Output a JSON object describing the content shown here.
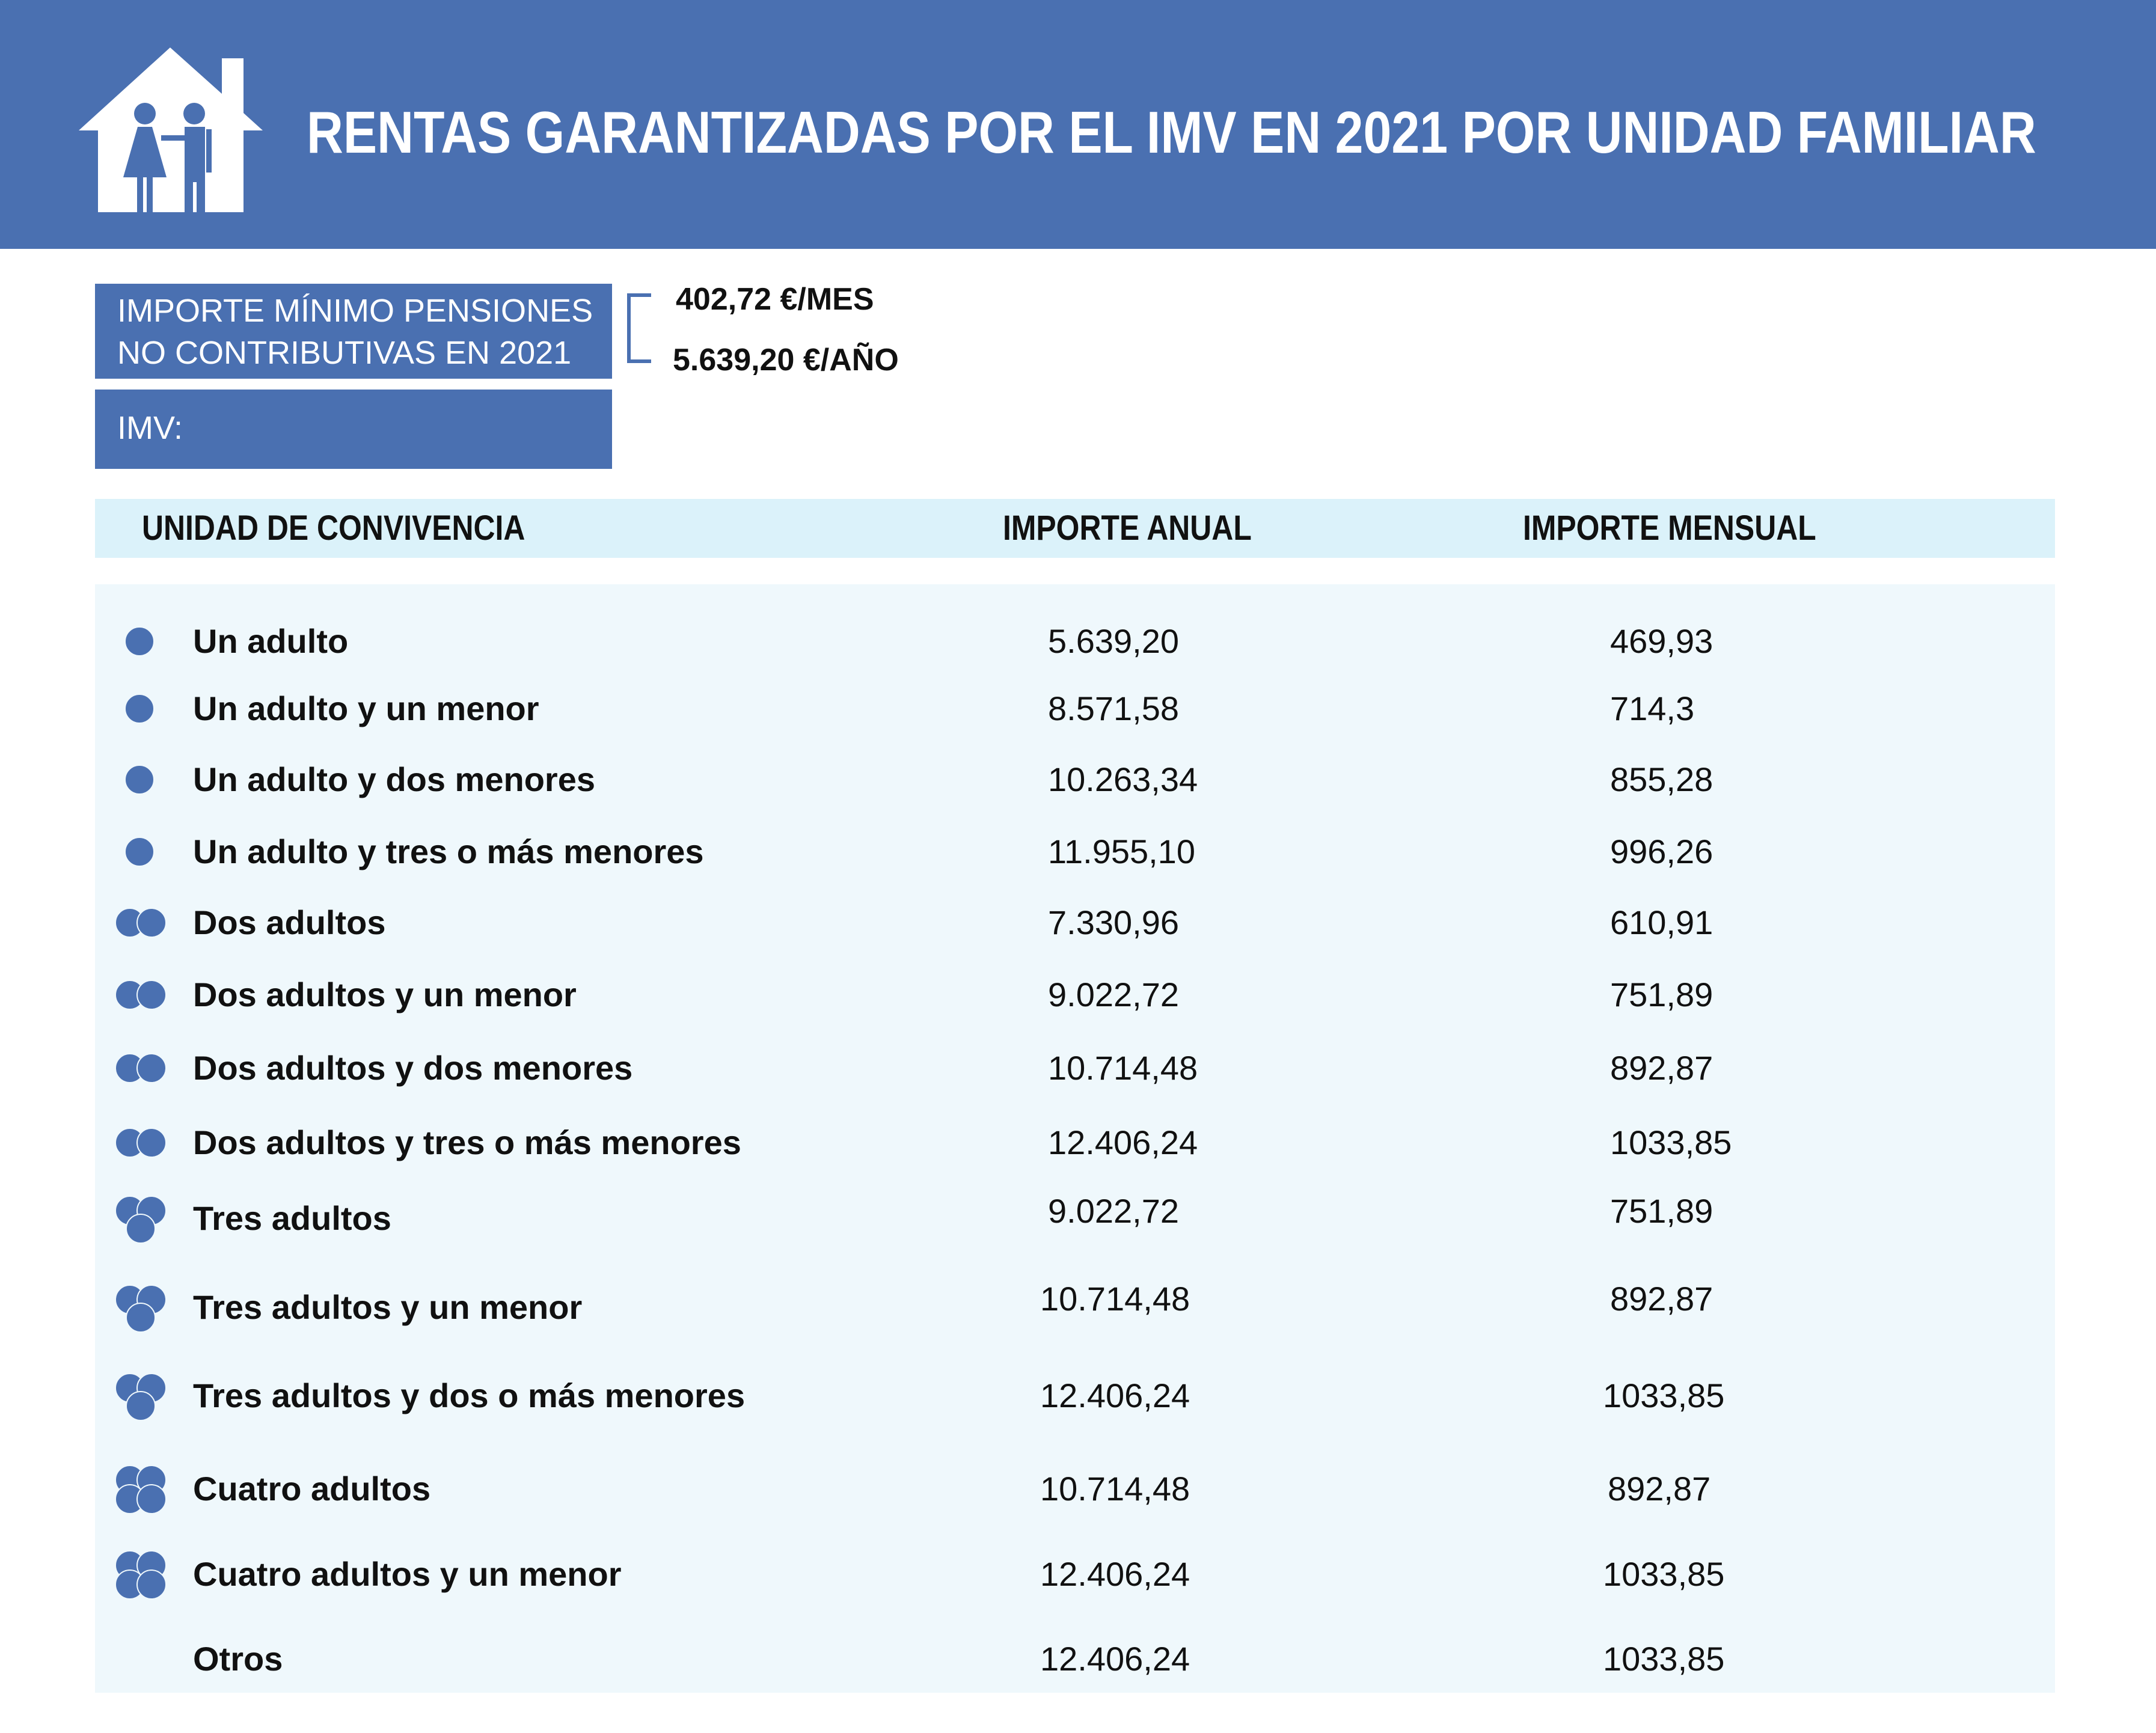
{
  "header": {
    "title": "RENTAS GARANTIZADAS POR EL IMV EN 2021 POR UNIDAD FAMILIAR",
    "icon": "house-family-icon"
  },
  "pension_box": {
    "line1": "IMPORTE MÍNIMO PENSIONES",
    "line2": "NO CONTRIBUTIVAS EN 2021",
    "monthly": "402,72 €/MES",
    "yearly": "5.639,20 €/AÑO"
  },
  "imv_box": {
    "label": "IMV:"
  },
  "table": {
    "headers": {
      "unit": "UNIDAD DE CONVIVENCIA",
      "annual": "IMPORTE ANUAL",
      "monthly": "IMPORTE MENSUAL"
    },
    "rows": [
      {
        "label": "Un adulto",
        "annual": "5.639,20",
        "monthly": "469,93",
        "adults": 1
      },
      {
        "label": "Un adulto y un menor",
        "annual": "8.571,58",
        "monthly": "714,3",
        "adults": 1
      },
      {
        "label": "Un adulto y dos menores",
        "annual": "10.263,34",
        "monthly": "855,28",
        "adults": 1
      },
      {
        "label": "Un adulto y tres o más menores",
        "annual": "11.955,10",
        "monthly": "996,26",
        "adults": 1
      },
      {
        "label": "Dos adultos",
        "annual": "7.330,96",
        "monthly": "610,91",
        "adults": 2
      },
      {
        "label": "Dos adultos y un menor",
        "annual": "9.022,72",
        "monthly": "751,89",
        "adults": 2
      },
      {
        "label": "Dos adultos y dos menores",
        "annual": "10.714,48",
        "monthly": "892,87",
        "adults": 2
      },
      {
        "label": "Dos adultos y tres o más menores",
        "annual": "12.406,24",
        "monthly": "1033,85",
        "adults": 2
      },
      {
        "label": "Tres adultos",
        "annual": "9.022,72",
        "monthly": "751,89",
        "adults": 3
      },
      {
        "label": "Tres adultos y un menor",
        "annual": "10.714,48",
        "monthly": "892,87",
        "adults": 3
      },
      {
        "label": "Tres adultos y dos o más menores",
        "annual": "12.406,24",
        "monthly": "1033,85",
        "adults": 3
      },
      {
        "label": "Cuatro adultos",
        "annual": "10.714,48",
        "monthly": "892,87",
        "adults": 4
      },
      {
        "label": "Cuatro adultos y un menor",
        "annual": "12.406,24",
        "monthly": "1033,85",
        "adults": 4
      },
      {
        "label": "Otros",
        "annual": "12.406,24",
        "monthly": "1033,85",
        "adults": 0
      }
    ]
  },
  "colors": {
    "primary_blue": "#4a70b1",
    "header_row_bg": "#dbf2fa",
    "table_bg": "#eff8fc"
  }
}
